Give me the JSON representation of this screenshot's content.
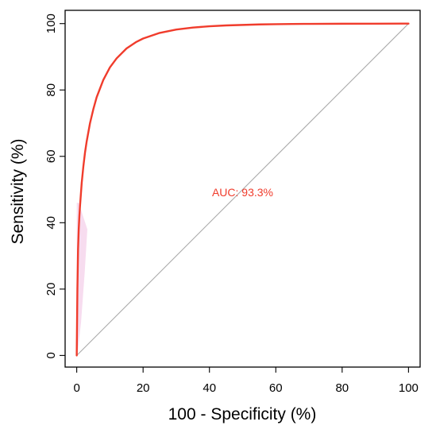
{
  "chart_data": {
    "type": "line",
    "title": "",
    "xlabel": "100 -  Specificity (%)",
    "ylabel": "Sensitivity (%)",
    "xlim": [
      -3.5,
      103.5
    ],
    "ylim": [
      -3.5,
      104
    ],
    "x_ticks": [
      0,
      20,
      40,
      60,
      80,
      100
    ],
    "y_ticks": [
      0,
      20,
      40,
      60,
      80,
      100
    ],
    "grid": false,
    "legend": "none",
    "annotation": {
      "text": "AUC: 93.3%",
      "x": 50,
      "y": 48,
      "color": "#f03c2c"
    },
    "series": [
      {
        "role": "roc-curve",
        "color": "#f03c2c",
        "x": [
          0,
          0.1,
          0.2,
          0.4,
          0.6,
          0.8,
          1,
          1.5,
          2,
          2.5,
          3,
          4,
          5,
          6,
          8,
          10,
          12,
          15,
          18,
          20,
          25,
          30,
          35,
          40,
          45,
          50,
          55,
          60,
          65,
          70,
          80,
          90,
          100
        ],
        "y": [
          0,
          10,
          20,
          32,
          38,
          42,
          45.2,
          52,
          57,
          61.2,
          64.5,
          70,
          74.2,
          77.8,
          83,
          86.8,
          89.5,
          92.5,
          94.5,
          95.5,
          97.2,
          98.2,
          98.8,
          99.2,
          99.45,
          99.6,
          99.75,
          99.82,
          99.88,
          99.92,
          99.96,
          99.98,
          100
        ]
      },
      {
        "role": "reference-diagonal",
        "color": "#aaaaaa",
        "x": [
          0,
          100
        ],
        "y": [
          0,
          100
        ]
      }
    ],
    "confidence_band": {
      "color": "#f7dcef",
      "x_min": [
        0,
        0,
        0,
        0,
        0
      ],
      "x_max": [
        0.2,
        1.3,
        2.4,
        3.2,
        0.6
      ],
      "y": [
        0,
        10,
        25,
        38,
        46
      ]
    }
  }
}
